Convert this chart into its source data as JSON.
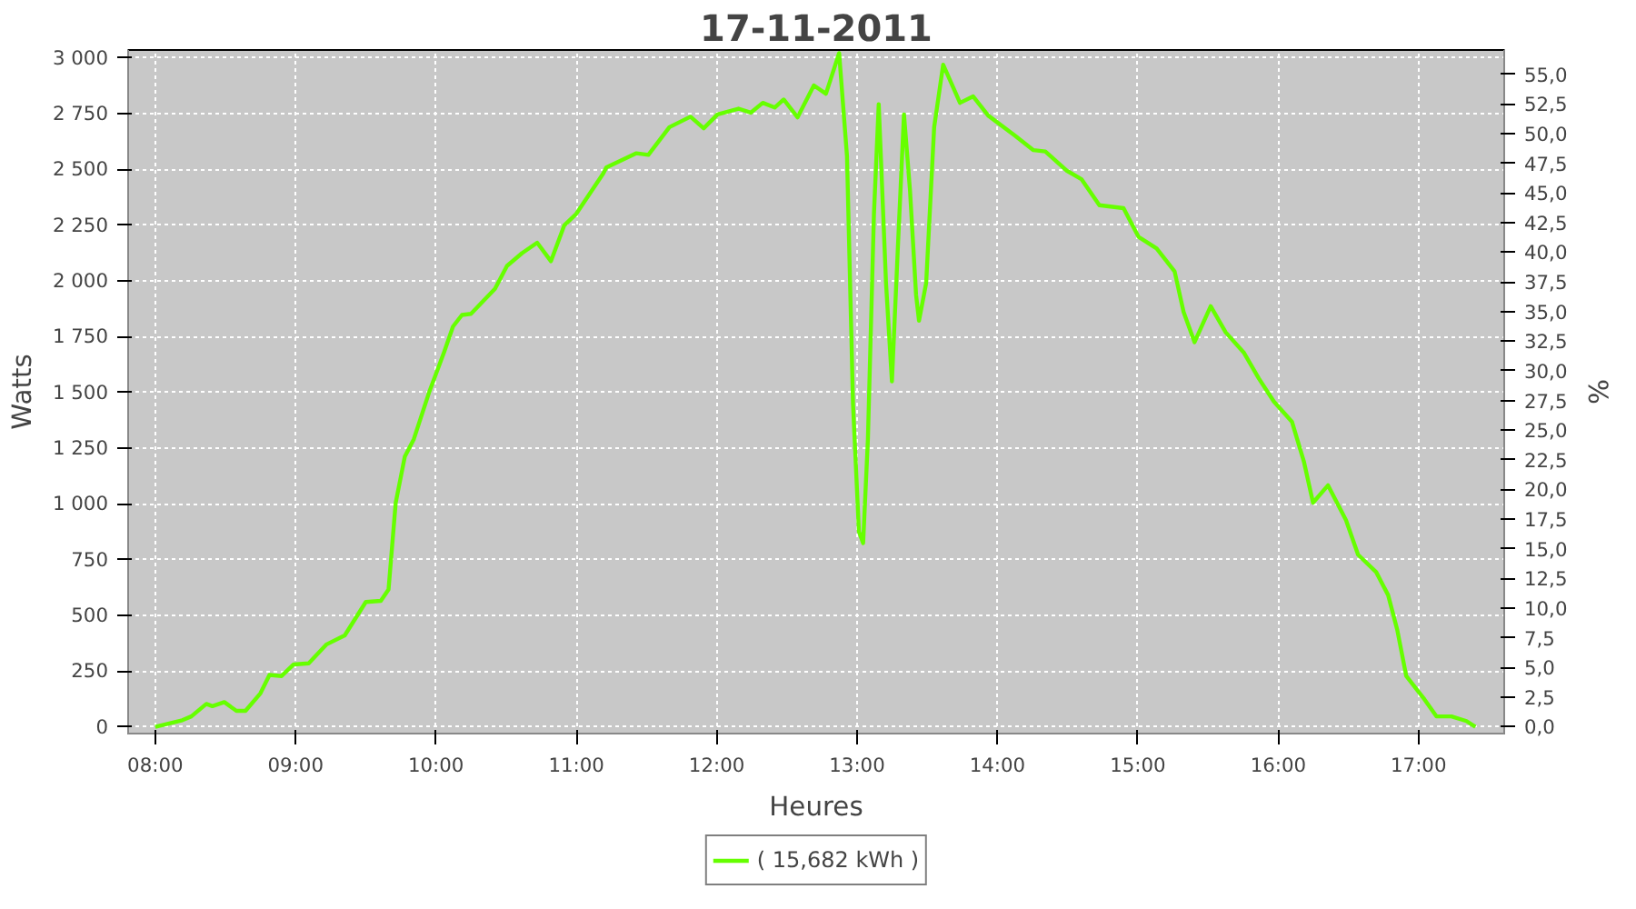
{
  "chart_data": {
    "type": "line",
    "title": "17-11-2011",
    "xlabel": "Heures",
    "ylabel": "Watts",
    "y2label": "%",
    "xlim": [
      7.807,
      17.61
    ],
    "xticks": [
      {
        "value": 8,
        "label": "08:00"
      },
      {
        "value": 9,
        "label": "09:00"
      },
      {
        "value": 10,
        "label": "10:00"
      },
      {
        "value": 11,
        "label": "11:00"
      },
      {
        "value": 12,
        "label": "12:00"
      },
      {
        "value": 13,
        "label": "13:00"
      },
      {
        "value": 14,
        "label": "14:00"
      },
      {
        "value": 15,
        "label": "15:00"
      },
      {
        "value": 16,
        "label": "16:00"
      },
      {
        "value": 17,
        "label": "17:00"
      }
    ],
    "ylim": [
      -30,
      3035
    ],
    "yticks": [
      0,
      250,
      500,
      750,
      {
        "value": 1000,
        "label": "1 000"
      },
      {
        "value": 1250,
        "label": "1 250"
      },
      {
        "value": 1500,
        "label": "1 500"
      },
      {
        "value": 1750,
        "label": "1 750"
      },
      {
        "value": 2000,
        "label": "2 000"
      },
      {
        "value": 2250,
        "label": "2 250"
      },
      {
        "value": 2500,
        "label": "2 500"
      },
      {
        "value": 2750,
        "label": "2 750"
      },
      {
        "value": 3000,
        "label": "3 000"
      }
    ],
    "y2lim": [
      -0.58,
      57.04
    ],
    "y2ticks": [
      {
        "value": 0,
        "label": "0,0"
      },
      {
        "value": 2.5,
        "label": "2,5"
      },
      {
        "value": 5,
        "label": "5,0"
      },
      {
        "value": 7.5,
        "label": "7,5"
      },
      {
        "value": 10,
        "label": "10,0"
      },
      {
        "value": 12.5,
        "label": "12,5"
      },
      {
        "value": 15,
        "label": "15,0"
      },
      {
        "value": 17.5,
        "label": "17,5"
      },
      {
        "value": 20,
        "label": "20,0"
      },
      {
        "value": 22.5,
        "label": "22,5"
      },
      {
        "value": 25,
        "label": "25,0"
      },
      {
        "value": 27.5,
        "label": "27,5"
      },
      {
        "value": 30,
        "label": "30,0"
      },
      {
        "value": 32.5,
        "label": "32,5"
      },
      {
        "value": 35,
        "label": "35,0"
      },
      {
        "value": 37.5,
        "label": "37,5"
      },
      {
        "value": 40,
        "label": "40,0"
      },
      {
        "value": 42.5,
        "label": "42,5"
      },
      {
        "value": 45,
        "label": "45,0"
      },
      {
        "value": 47.5,
        "label": "47,5"
      },
      {
        "value": 50,
        "label": "50,0"
      },
      {
        "value": 52.5,
        "label": "52,5"
      },
      {
        "value": 55,
        "label": "55,0"
      }
    ],
    "grid": true,
    "legend": "bottom",
    "line_style": "solid",
    "series": [
      {
        "name": "( 15,682 kWh )",
        "color": "#66ff00",
        "x": [
          8.0,
          8.193,
          8.257,
          8.364,
          8.407,
          8.492,
          8.578,
          8.643,
          8.749,
          8.814,
          8.9,
          8.986,
          9.093,
          9.221,
          9.35,
          9.5,
          9.607,
          9.662,
          9.713,
          9.778,
          9.842,
          9.95,
          10.057,
          10.121,
          10.185,
          10.249,
          10.42,
          10.506,
          10.613,
          10.721,
          10.819,
          10.914,
          10.999,
          11.192,
          11.213,
          11.428,
          11.513,
          11.663,
          11.813,
          11.907,
          12.006,
          12.155,
          12.242,
          12.328,
          12.413,
          12.477,
          12.576,
          12.692,
          12.778,
          12.872,
          12.928,
          12.971,
          13.013,
          13.043,
          13.077,
          13.12,
          13.154,
          13.206,
          13.248,
          13.292,
          13.334,
          13.377,
          13.42,
          13.441,
          13.492,
          13.549,
          13.613,
          13.733,
          13.827,
          13.934,
          14.127,
          14.256,
          14.341,
          14.491,
          14.598,
          14.726,
          14.898,
          15.005,
          15.134,
          15.262,
          15.326,
          15.404,
          15.519,
          15.626,
          15.754,
          15.862,
          15.969,
          16.098,
          16.184,
          16.248,
          16.355,
          16.483,
          16.569,
          16.698,
          16.783,
          16.848,
          16.912,
          17.041,
          17.127,
          17.234,
          17.341,
          17.405
        ],
        "values": [
          0,
          30,
          47,
          103,
          93,
          111,
          72,
          72,
          150,
          233,
          228,
          280,
          285,
          370,
          410,
          560,
          565,
          616,
          1005,
          1212,
          1290,
          1498,
          1679,
          1795,
          1847,
          1852,
          1964,
          2067,
          2124,
          2171,
          2088,
          2249,
          2300,
          2482,
          2508,
          2572,
          2565,
          2689,
          2736,
          2684,
          2746,
          2772,
          2754,
          2798,
          2777,
          2813,
          2733,
          2876,
          2839,
          3021,
          2559,
          1446,
          876,
          824,
          1290,
          2300,
          2792,
          1990,
          1549,
          2171,
          2746,
          2404,
          1938,
          1821,
          1990,
          2689,
          2969,
          2798,
          2827,
          2741,
          2650,
          2586,
          2580,
          2495,
          2456,
          2339,
          2326,
          2197,
          2145,
          2042,
          1860,
          1725,
          1886,
          1769,
          1679,
          1562,
          1459,
          1368,
          1187,
          1005,
          1083,
          927,
          772,
          694,
          591,
          435,
          228,
          124,
          47,
          47,
          26,
          0
        ]
      }
    ]
  }
}
